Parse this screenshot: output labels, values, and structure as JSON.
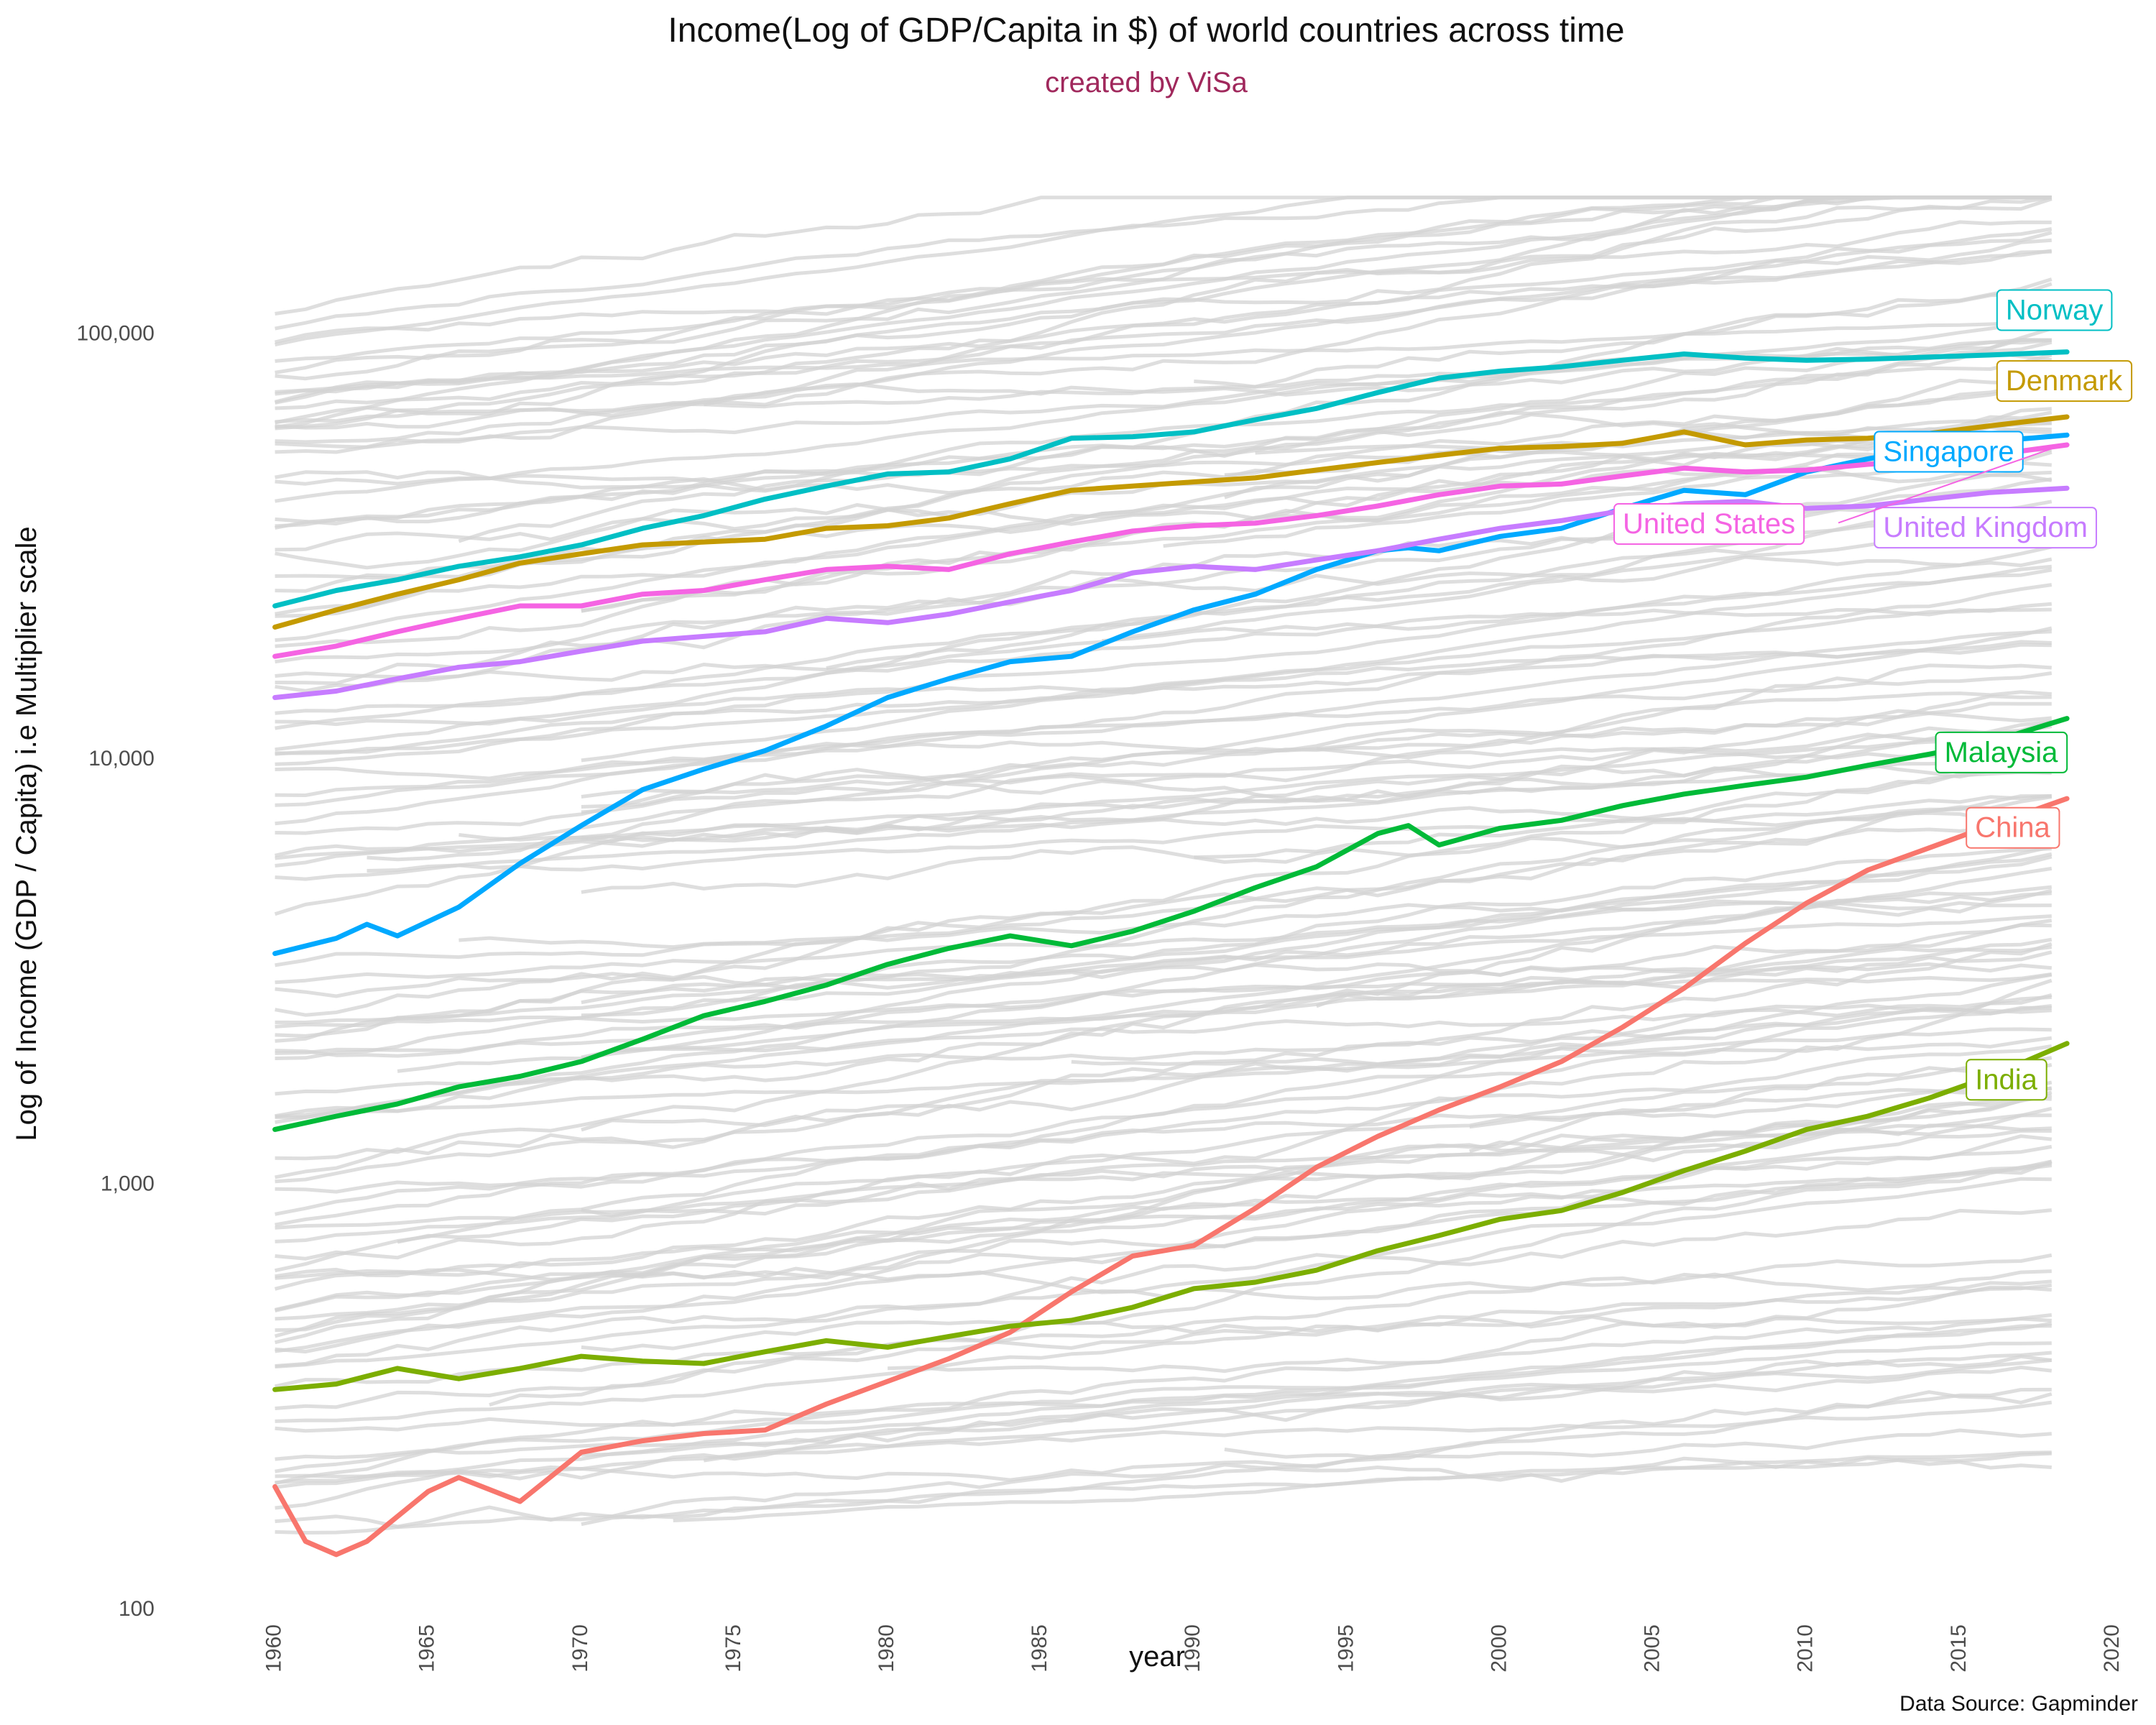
{
  "chart_data": {
    "type": "line",
    "title": "Income(Log of GDP/Capita in $) of world countries across time",
    "subtitle": "created by ViSa",
    "xlabel": "year",
    "ylabel": "Log of Income (GDP / Capita) i.e Multiplier scale",
    "caption": "Data Source: Gapminder",
    "yscale": "log",
    "xlim": [
      1959,
      2020
    ],
    "ylim": [
      100,
      250000
    ],
    "xticks": [
      1960,
      1965,
      1970,
      1975,
      1980,
      1985,
      1990,
      1995,
      2000,
      2005,
      2010,
      2015,
      2020
    ],
    "xtick_labels": [
      "1960",
      "1965",
      "1970",
      "1975",
      "1980",
      "1985",
      "1990",
      "1995",
      "2000",
      "2005",
      "2010",
      "2015",
      "2020"
    ],
    "yticks": [
      100,
      1000,
      10000,
      100000
    ],
    "ytick_labels": [
      "100",
      "1,000",
      "10,000",
      "100,000"
    ],
    "grid": false,
    "legend": "none",
    "background_color": "#d3d3d3",
    "series": [
      {
        "name": "Norway",
        "color": "#00BFC4",
        "x": [
          1960,
          1962,
          1964,
          1966,
          1968,
          1970,
          1972,
          1974,
          1976,
          1978,
          1980,
          1982,
          1984,
          1986,
          1988,
          1990,
          1992,
          1994,
          1996,
          1998,
          2000,
          2002,
          2004,
          2006,
          2008,
          2010,
          2012,
          2014,
          2016,
          2018.5
        ],
        "y": [
          23000,
          25000,
          26500,
          28500,
          30000,
          32000,
          35000,
          37500,
          41000,
          44000,
          47000,
          47500,
          51000,
          57000,
          57500,
          59000,
          63000,
          67000,
          73000,
          79000,
          82000,
          84000,
          87000,
          90000,
          88000,
          87000,
          87500,
          88500,
          89500,
          91000
        ]
      },
      {
        "name": "Denmark",
        "color": "#C49A00",
        "x": [
          1960,
          1962,
          1964,
          1966,
          1968,
          1970,
          1972,
          1974,
          1976,
          1978,
          1980,
          1982,
          1984,
          1986,
          1988,
          1990,
          1992,
          1994,
          1996,
          1998,
          2000,
          2002,
          2004,
          2006,
          2008,
          2010,
          2012,
          2014,
          2016,
          2018.5
        ],
        "y": [
          20500,
          22500,
          24500,
          26500,
          29000,
          30500,
          32000,
          32500,
          33000,
          35000,
          35500,
          37000,
          40000,
          43000,
          44000,
          45000,
          46000,
          48000,
          50000,
          52000,
          54000,
          54500,
          55500,
          59000,
          55000,
          56500,
          57000,
          58500,
          61000,
          64000
        ]
      },
      {
        "name": "Singapore",
        "color": "#00A9FF",
        "x": [
          1960,
          1962,
          1963,
          1964,
          1966,
          1968,
          1970,
          1972,
          1974,
          1976,
          1978,
          1980,
          1982,
          1984,
          1986,
          1988,
          1990,
          1992,
          1994,
          1996,
          1997,
          1998,
          2000,
          2002,
          2004,
          2006,
          2008,
          2010,
          2012,
          2014,
          2016,
          2018.5
        ],
        "y": [
          3500,
          3800,
          4100,
          3850,
          4500,
          5700,
          7000,
          8500,
          9500,
          10500,
          12000,
          14000,
          15500,
          17000,
          17500,
          20000,
          22500,
          24500,
          28000,
          31000,
          31500,
          31000,
          33500,
          35000,
          39000,
          43000,
          42000,
          47500,
          51000,
          54000,
          56000,
          58000
        ]
      },
      {
        "name": "United States",
        "color": "#F564E3",
        "x": [
          1960,
          1962,
          1964,
          1966,
          1968,
          1970,
          1972,
          1974,
          1976,
          1978,
          1980,
          1982,
          1984,
          1986,
          1988,
          1990,
          1992,
          1994,
          1996,
          1998,
          2000,
          2002,
          2004,
          2006,
          2008,
          2010,
          2012,
          2014,
          2016,
          2018.5
        ],
        "y": [
          17500,
          18500,
          20000,
          21500,
          23000,
          23000,
          24500,
          25000,
          26500,
          28000,
          28500,
          28000,
          30500,
          32500,
          34500,
          35500,
          36000,
          37500,
          39500,
          42000,
          44000,
          44500,
          46500,
          48500,
          47500,
          48000,
          49500,
          50500,
          52000,
          55000
        ]
      },
      {
        "name": "United Kingdom",
        "color": "#C77CFF",
        "x": [
          1960,
          1962,
          1964,
          1966,
          1968,
          1970,
          1972,
          1974,
          1976,
          1978,
          1980,
          1982,
          1984,
          1986,
          1988,
          1990,
          1992,
          1994,
          1996,
          1998,
          2000,
          2002,
          2004,
          2006,
          2008,
          2010,
          2012,
          2014,
          2016,
          2018.5
        ],
        "y": [
          14000,
          14500,
          15500,
          16500,
          17000,
          18000,
          19000,
          19500,
          20000,
          21500,
          21000,
          22000,
          23500,
          25000,
          27500,
          28500,
          28000,
          29500,
          31000,
          33000,
          35000,
          36500,
          38500,
          40000,
          40500,
          39000,
          39500,
          41000,
          42500,
          43500
        ]
      },
      {
        "name": "Malaysia",
        "color": "#00BA38",
        "x": [
          1960,
          1962,
          1964,
          1966,
          1968,
          1970,
          1972,
          1974,
          1976,
          1978,
          1980,
          1982,
          1984,
          1986,
          1988,
          1990,
          1992,
          1994,
          1996,
          1997,
          1998,
          2000,
          2002,
          2004,
          2006,
          2008,
          2010,
          2012,
          2014,
          2016,
          2018.5
        ],
        "y": [
          1350,
          1450,
          1550,
          1700,
          1800,
          1950,
          2200,
          2500,
          2700,
          2950,
          3300,
          3600,
          3850,
          3650,
          3950,
          4400,
          5000,
          5600,
          6700,
          7000,
          6300,
          6900,
          7200,
          7800,
          8300,
          8700,
          9100,
          9700,
          10300,
          11000,
          12500
        ]
      },
      {
        "name": "China",
        "color": "#F8766D",
        "x": [
          1960,
          1961,
          1962,
          1963,
          1965,
          1966,
          1968,
          1970,
          1972,
          1974,
          1976,
          1978,
          1980,
          1982,
          1984,
          1986,
          1988,
          1990,
          1992,
          1994,
          1996,
          1998,
          2000,
          2002,
          2004,
          2006,
          2008,
          2010,
          2012,
          2014,
          2016,
          2018.5
        ],
        "y": [
          195,
          145,
          135,
          145,
          190,
          205,
          180,
          235,
          250,
          260,
          265,
          305,
          345,
          390,
          450,
          560,
          680,
          720,
          880,
          1100,
          1300,
          1500,
          1700,
          1950,
          2350,
          2900,
          3700,
          4600,
          5500,
          6200,
          7000,
          8100
        ]
      },
      {
        "name": "India",
        "color": "#7CAE00",
        "x": [
          1960,
          1962,
          1964,
          1966,
          1968,
          1970,
          1972,
          1974,
          1976,
          1978,
          1980,
          1982,
          1984,
          1986,
          1988,
          1990,
          1992,
          1994,
          1996,
          1998,
          2000,
          2002,
          2004,
          2006,
          2008,
          2010,
          2012,
          2014,
          2016,
          2018.5
        ],
        "y": [
          330,
          340,
          370,
          350,
          370,
          395,
          385,
          380,
          405,
          430,
          415,
          440,
          465,
          480,
          515,
          570,
          590,
          630,
          700,
          760,
          830,
          870,
          960,
          1080,
          1200,
          1350,
          1450,
          1600,
          1800,
          2150
        ]
      }
    ],
    "labels": [
      {
        "series": "Norway",
        "text": "Norway",
        "x": 2016.5,
        "y": 113000
      },
      {
        "series": "Denmark",
        "text": "Denmark",
        "x": 2016.5,
        "y": 77000
      },
      {
        "series": "Singapore",
        "text": "Singapore",
        "x": 2012.5,
        "y": 52500
      },
      {
        "series": "United States",
        "text": "United States",
        "x": 2004,
        "y": 35500
      },
      {
        "series": "United Kingdom",
        "text": "United Kingdom",
        "x": 2012.5,
        "y": 34800
      },
      {
        "series": "Malaysia",
        "text": "Malaysia",
        "x": 2014.5,
        "y": 10300
      },
      {
        "series": "China",
        "text": "China",
        "x": 2015.5,
        "y": 6850
      },
      {
        "series": "India",
        "text": "India",
        "x": 2015.5,
        "y": 1750
      }
    ]
  }
}
